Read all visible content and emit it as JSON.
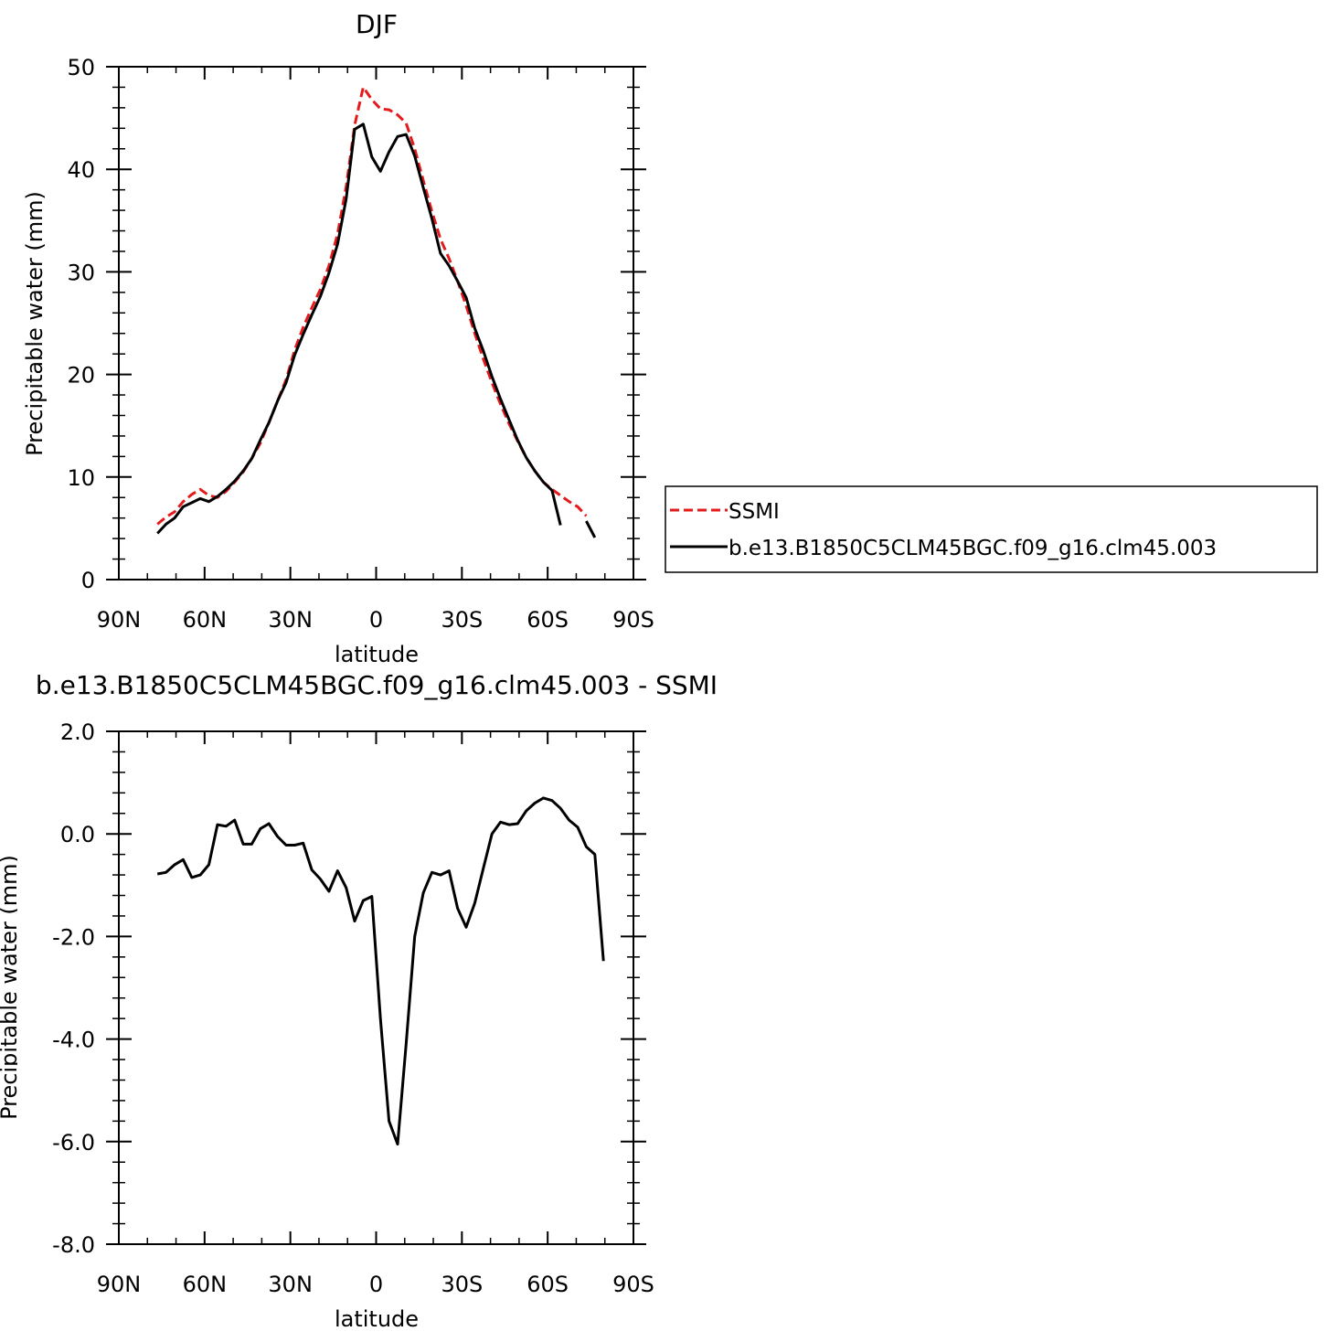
{
  "chart_data": [
    {
      "type": "line",
      "title": "DJF",
      "xlabel": "latitude",
      "ylabel": "Precipitable water (mm)",
      "xlim": [
        -90,
        90
      ],
      "ylim": [
        0,
        50
      ],
      "xticks": [
        -90,
        -60,
        -30,
        0,
        30,
        60,
        90
      ],
      "xtick_labels": [
        "90N",
        "60N",
        "30N",
        "0",
        "30S",
        "60S",
        "90S"
      ],
      "yticks": [
        0,
        10,
        20,
        30,
        40,
        50
      ],
      "ytick_labels": [
        "0",
        "10",
        "20",
        "30",
        "40",
        "50"
      ],
      "legend": {
        "placement": "right",
        "entries": [
          "SSMI",
          "b.e13.B1850C5CLM45BGC.f09_g16.clm45.003"
        ]
      },
      "series": [
        {
          "name": "SSMI",
          "color": "#e41a1c",
          "dash": true,
          "points": [
            [
              -76.5,
              5.4
            ],
            [
              -73.5,
              6.1
            ],
            [
              -70.5,
              6.6
            ],
            [
              -67.5,
              7.6
            ],
            [
              -64.5,
              8.3
            ],
            [
              -61.5,
              8.8
            ],
            [
              -58.5,
              8.2
            ],
            [
              -55.5,
              8.0
            ],
            [
              -52.5,
              8.6
            ],
            [
              -49.5,
              9.5
            ],
            [
              -46.5,
              10.5
            ],
            [
              -43.5,
              11.8
            ],
            [
              -40.5,
              13.3
            ],
            [
              -37.5,
              15.3
            ],
            [
              -34.5,
              17.4
            ],
            [
              -31.5,
              19.5
            ],
            [
              -28.5,
              22.4
            ],
            [
              -25.5,
              24.6
            ],
            [
              -22.5,
              26.5
            ],
            [
              -19.5,
              28.3
            ],
            [
              -16.5,
              30.6
            ],
            [
              -13.5,
              33.7
            ],
            [
              -10.5,
              38.3
            ],
            [
              -7.5,
              44.3
            ],
            [
              -4.5,
              48.0
            ],
            [
              -1.5,
              46.8
            ],
            [
              1.5,
              45.9
            ],
            [
              4.5,
              45.8
            ],
            [
              7.5,
              45.3
            ],
            [
              10.5,
              44.5
            ],
            [
              13.5,
              42.0
            ],
            [
              16.5,
              38.9
            ],
            [
              19.5,
              35.9
            ],
            [
              22.5,
              33.2
            ],
            [
              25.5,
              31.3
            ],
            [
              28.5,
              29.1
            ],
            [
              31.5,
              26.7
            ],
            [
              34.5,
              24.0
            ],
            [
              37.5,
              21.5
            ],
            [
              40.5,
              19.2
            ],
            [
              43.5,
              17.1
            ],
            [
              46.5,
              15.2
            ],
            [
              49.5,
              13.5
            ],
            [
              52.5,
              11.9
            ],
            [
              55.5,
              10.6
            ],
            [
              58.5,
              9.5
            ],
            [
              61.5,
              8.8
            ],
            [
              64.5,
              8.2
            ],
            [
              67.5,
              7.6
            ],
            [
              70.5,
              7.1
            ],
            [
              73.5,
              6.2
            ]
          ]
        },
        {
          "name": "b.e13.B1850C5CLM45BGC.f09_g16.clm45.003",
          "color": "#000000",
          "dash": false,
          "segments": [
            [
              [
                -76.5,
                4.5
              ],
              [
                -73.5,
                5.4
              ],
              [
                -70.5,
                6.0
              ],
              [
                -67.5,
                7.1
              ],
              [
                -64.5,
                7.5
              ],
              [
                -61.5,
                7.9
              ],
              [
                -58.5,
                7.6
              ],
              [
                -55.5,
                8.1
              ],
              [
                -52.5,
                8.8
              ],
              [
                -49.5,
                9.6
              ],
              [
                -46.5,
                10.6
              ],
              [
                -43.5,
                11.8
              ],
              [
                -40.5,
                13.6
              ],
              [
                -37.5,
                15.3
              ],
              [
                -34.5,
                17.4
              ],
              [
                -31.5,
                19.2
              ],
              [
                -28.5,
                21.9
              ],
              [
                -25.5,
                23.9
              ],
              [
                -22.5,
                25.8
              ],
              [
                -19.5,
                27.6
              ],
              [
                -16.5,
                29.9
              ],
              [
                -13.5,
                32.7
              ],
              [
                -10.5,
                37.1
              ],
              [
                -7.5,
                43.9
              ],
              [
                -4.5,
                44.4
              ],
              [
                -1.5,
                41.2
              ],
              [
                1.5,
                39.8
              ],
              [
                4.5,
                41.7
              ],
              [
                7.5,
                43.2
              ],
              [
                10.5,
                43.4
              ],
              [
                13.5,
                41.3
              ],
              [
                16.5,
                38.2
              ],
              [
                19.5,
                35.2
              ],
              [
                22.5,
                31.8
              ],
              [
                25.5,
                30.6
              ],
              [
                28.5,
                29.1
              ],
              [
                31.5,
                27.5
              ],
              [
                34.5,
                24.5
              ],
              [
                37.5,
                22.3
              ],
              [
                40.5,
                19.8
              ],
              [
                43.5,
                17.6
              ],
              [
                46.5,
                15.6
              ],
              [
                49.5,
                13.6
              ],
              [
                52.5,
                11.9
              ],
              [
                55.5,
                10.6
              ],
              [
                58.5,
                9.5
              ],
              [
                61.5,
                8.7
              ],
              [
                64.5,
                5.3
              ]
            ],
            [
              [
                73.5,
                5.7
              ],
              [
                76.5,
                4.1
              ]
            ]
          ]
        }
      ]
    },
    {
      "type": "line",
      "title": "b.e13.B1850C5CLM45BGC.f09_g16.clm45.003 - SSMI",
      "xlabel": "latitude",
      "ylabel": "Precipitable water (mm)",
      "xlim": [
        -90,
        90
      ],
      "ylim": [
        -8,
        2
      ],
      "xticks": [
        -90,
        -60,
        -30,
        0,
        30,
        60,
        90
      ],
      "xtick_labels": [
        "90N",
        "60N",
        "30N",
        "0",
        "30S",
        "60S",
        "90S"
      ],
      "yticks": [
        -8,
        -6,
        -4,
        -2,
        0,
        2
      ],
      "ytick_labels": [
        "-8.0",
        "-6.0",
        "-4.0",
        "-2.0",
        "0.0",
        "2.0"
      ],
      "series": [
        {
          "color": "#000000",
          "dash": false,
          "points": [
            [
              -76.5,
              -0.78
            ],
            [
              -73.5,
              -0.75
            ],
            [
              -70.5,
              -0.6
            ],
            [
              -67.5,
              -0.5
            ],
            [
              -64.5,
              -0.85
            ],
            [
              -61.5,
              -0.8
            ],
            [
              -58.5,
              -0.6
            ],
            [
              -55.5,
              0.18
            ],
            [
              -52.5,
              0.15
            ],
            [
              -49.5,
              0.27
            ],
            [
              -46.5,
              -0.2
            ],
            [
              -43.5,
              -0.2
            ],
            [
              -40.5,
              0.1
            ],
            [
              -37.5,
              0.2
            ],
            [
              -34.5,
              -0.05
            ],
            [
              -31.5,
              -0.22
            ],
            [
              -28.5,
              -0.22
            ],
            [
              -25.5,
              -0.18
            ],
            [
              -22.5,
              -0.7
            ],
            [
              -19.5,
              -0.88
            ],
            [
              -16.5,
              -1.12
            ],
            [
              -13.5,
              -0.72
            ],
            [
              -10.5,
              -1.05
            ],
            [
              -7.5,
              -1.7
            ],
            [
              -4.5,
              -1.3
            ],
            [
              -1.5,
              -1.22
            ],
            [
              1.5,
              -3.6
            ],
            [
              4.5,
              -5.6
            ],
            [
              7.5,
              -6.05
            ],
            [
              10.5,
              -4.1
            ],
            [
              13.5,
              -2.0
            ],
            [
              16.5,
              -1.15
            ],
            [
              19.5,
              -0.75
            ],
            [
              22.5,
              -0.8
            ],
            [
              25.5,
              -0.72
            ],
            [
              28.5,
              -1.45
            ],
            [
              31.5,
              -1.82
            ],
            [
              34.5,
              -1.35
            ],
            [
              37.5,
              -0.67
            ],
            [
              40.5,
              0.0
            ],
            [
              43.5,
              0.23
            ],
            [
              46.5,
              0.18
            ],
            [
              49.5,
              0.2
            ],
            [
              52.5,
              0.45
            ],
            [
              55.5,
              0.6
            ],
            [
              58.5,
              0.7
            ],
            [
              61.5,
              0.65
            ],
            [
              64.5,
              0.5
            ],
            [
              67.5,
              0.27
            ],
            [
              70.5,
              0.13
            ],
            [
              73.5,
              -0.25
            ],
            [
              76.5,
              -0.4
            ],
            [
              79.5,
              -2.48
            ]
          ]
        }
      ]
    }
  ]
}
